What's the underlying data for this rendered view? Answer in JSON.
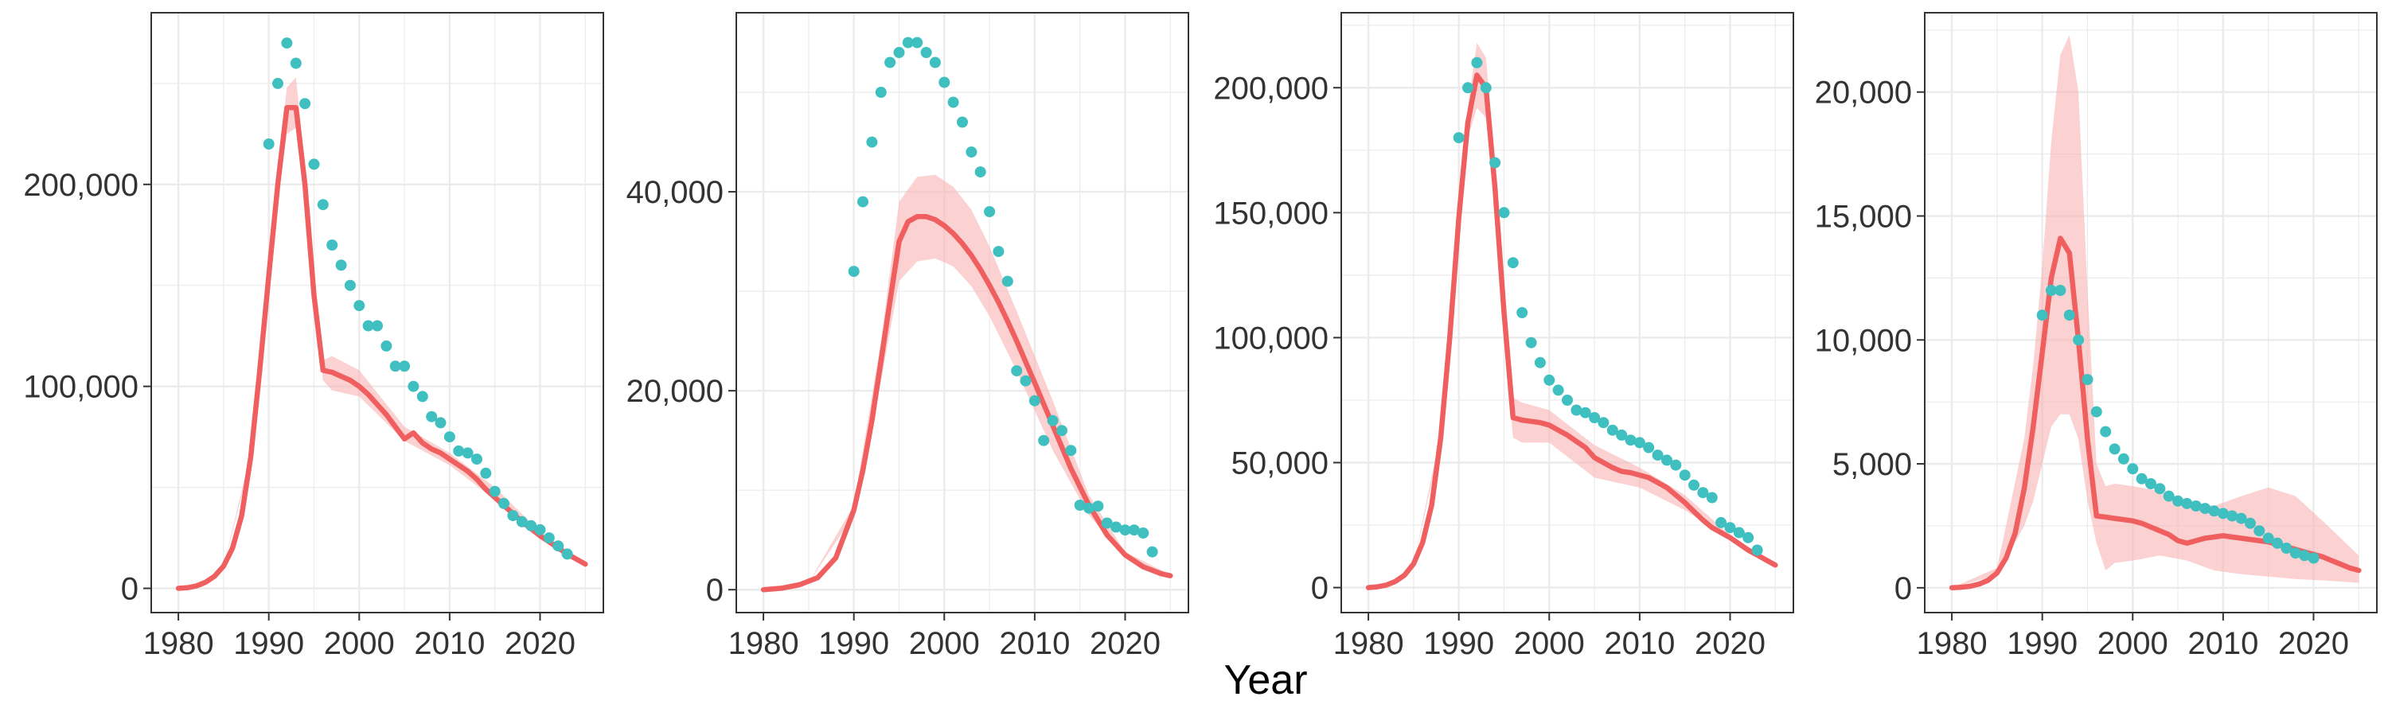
{
  "figure": {
    "x_axis_title": "Year",
    "colors": {
      "fit_line": "#EF5F5F",
      "ribbon": "#F8B4B4",
      "points": "#3FBFBF",
      "grid": "#EBEBEB",
      "panel_border": "#333333"
    }
  },
  "chart_data": [
    {
      "type": "line",
      "xlim": [
        1977,
        2027
      ],
      "ylim": [
        -12000,
        285000
      ],
      "x_ticks": [
        1980,
        1990,
        2000,
        2010,
        2020
      ],
      "x_tick_labels": [
        "1980",
        "1990",
        "2000",
        "2010",
        "2020"
      ],
      "y_ticks": [
        0,
        100000,
        200000
      ],
      "y_tick_labels": [
        "0",
        "100,000",
        "200,000"
      ],
      "grid": true,
      "fit": {
        "x": [
          1980,
          1981,
          1982,
          1983,
          1984,
          1985,
          1986,
          1987,
          1988,
          1989,
          1990,
          1991,
          1992,
          1993,
          1994,
          1995,
          1996,
          1997,
          1998,
          1999,
          2000,
          2001,
          2002,
          2003,
          2004,
          2005,
          2006,
          2007,
          2008,
          2009,
          2010,
          2011,
          2012,
          2013,
          2014,
          2015,
          2016,
          2017,
          2018,
          2019,
          2020,
          2021,
          2022,
          2023,
          2024,
          2025
        ],
        "y": [
          0,
          300,
          1200,
          3000,
          6000,
          11000,
          20000,
          36000,
          65000,
          108000,
          155000,
          200000,
          238000,
          238000,
          200000,
          145000,
          108000,
          107000,
          105000,
          103000,
          100000,
          96000,
          91000,
          86000,
          80000,
          74000,
          77000,
          72000,
          69000,
          67000,
          64000,
          61000,
          58000,
          54000,
          49000,
          45000,
          41000,
          37000,
          33000,
          29500,
          26000,
          23000,
          20000,
          17000,
          14500,
          12000
        ]
      },
      "band": {
        "x": [
          1980,
          1985,
          1988,
          1990,
          1991,
          1992,
          1993,
          1994,
          1995,
          1996,
          1997,
          2000,
          2005,
          2010,
          2015,
          2020,
          2025
        ],
        "lower": [
          0,
          11000,
          63000,
          150000,
          193000,
          225000,
          228000,
          195000,
          140000,
          103000,
          98000,
          95000,
          73000,
          61000,
          44000,
          25000,
          11500
        ],
        "upper": [
          0,
          11000,
          67000,
          160000,
          207000,
          248000,
          253000,
          210000,
          150000,
          113000,
          115000,
          108000,
          80000,
          67000,
          50000,
          28000,
          12500
        ]
      },
      "points": {
        "x": [
          1990,
          1991,
          1992,
          1993,
          1994,
          1995,
          1996,
          1997,
          1998,
          1999,
          2000,
          2001,
          2002,
          2003,
          2004,
          2005,
          2006,
          2007,
          2008,
          2009,
          2010,
          2011,
          2012,
          2013,
          2014,
          2015,
          2016,
          2017,
          2018,
          2019,
          2020,
          2021,
          2022,
          2023
        ],
        "y": [
          220000,
          250000,
          270000,
          260000,
          240000,
          210000,
          190000,
          170000,
          160000,
          150000,
          140000,
          130000,
          130000,
          120000,
          110000,
          110000,
          100000,
          95000,
          85000,
          82000,
          75000,
          68000,
          67000,
          64000,
          57000,
          48000,
          42000,
          36000,
          33000,
          31000,
          29000,
          25000,
          21000,
          17000
        ]
      }
    },
    {
      "type": "line",
      "xlim": [
        1977,
        2027
      ],
      "ylim": [
        -2300,
        58000
      ],
      "x_ticks": [
        1980,
        1990,
        2000,
        2010,
        2020
      ],
      "x_tick_labels": [
        "1980",
        "1990",
        "2000",
        "2010",
        "2020"
      ],
      "y_ticks": [
        0,
        20000,
        40000
      ],
      "y_tick_labels": [
        "0",
        "20,000",
        "40,000"
      ],
      "grid": true,
      "fit": {
        "x": [
          1980,
          1982,
          1984,
          1986,
          1988,
          1990,
          1991,
          1992,
          1993,
          1994,
          1995,
          1996,
          1997,
          1998,
          1999,
          2000,
          2001,
          2002,
          2003,
          2004,
          2005,
          2006,
          2007,
          2008,
          2010,
          2012,
          2014,
          2016,
          2018,
          2020,
          2022,
          2024,
          2025
        ],
        "y": [
          0,
          150,
          500,
          1200,
          3200,
          8000,
          12000,
          17000,
          23000,
          29000,
          35000,
          37000,
          37500,
          37500,
          37200,
          36600,
          35800,
          34800,
          33600,
          32200,
          30600,
          28900,
          27000,
          25000,
          20800,
          16500,
          12200,
          8500,
          5500,
          3500,
          2300,
          1600,
          1400
        ]
      },
      "band": {
        "x": [
          1980,
          1985,
          1990,
          1993,
          1995,
          1997,
          1999,
          2001,
          2003,
          2005,
          2008,
          2012,
          2016,
          2020,
          2025
        ],
        "lower": [
          0,
          700,
          7500,
          21000,
          31000,
          33000,
          33300,
          32500,
          30500,
          27500,
          22000,
          14000,
          7500,
          3200,
          1300
        ],
        "upper": [
          0,
          700,
          8500,
          25000,
          39000,
          41500,
          41700,
          40500,
          38200,
          34500,
          28000,
          19000,
          9500,
          3800,
          1500
        ]
      },
      "points": {
        "x": [
          1990,
          1991,
          1992,
          1993,
          1994,
          1995,
          1996,
          1997,
          1998,
          1999,
          2000,
          2001,
          2002,
          2003,
          2004,
          2005,
          2006,
          2007,
          2008,
          2009,
          2010,
          2011,
          2012,
          2013,
          2014,
          2015,
          2016,
          2017,
          2018,
          2019,
          2020,
          2021,
          2022,
          2023
        ],
        "y": [
          32000,
          39000,
          45000,
          50000,
          53000,
          54000,
          55000,
          55000,
          54000,
          53000,
          51000,
          49000,
          47000,
          44000,
          42000,
          38000,
          34000,
          31000,
          22000,
          21000,
          19000,
          15000,
          17000,
          16000,
          14000,
          8500,
          8200,
          8400,
          6700,
          6300,
          6000,
          6000,
          5700,
          3800
        ]
      }
    },
    {
      "type": "line",
      "xlim": [
        1977,
        2027
      ],
      "ylim": [
        -10000,
        230000
      ],
      "x_ticks": [
        1980,
        1990,
        2000,
        2010,
        2020
      ],
      "x_tick_labels": [
        "1980",
        "1990",
        "2000",
        "2010",
        "2020"
      ],
      "y_ticks": [
        0,
        50000,
        100000,
        150000,
        200000
      ],
      "y_tick_labels": [
        "0",
        "50,000",
        "100,000",
        "150,000",
        "200,000"
      ],
      "grid": true,
      "fit": {
        "x": [
          1980,
          1981,
          1982,
          1983,
          1984,
          1985,
          1986,
          1987,
          1988,
          1989,
          1990,
          1991,
          1992,
          1993,
          1994,
          1995,
          1996,
          1997,
          1998,
          1999,
          2000,
          2001,
          2002,
          2003,
          2004,
          2005,
          2006,
          2007,
          2008,
          2009,
          2010,
          2011,
          2012,
          2013,
          2014,
          2015,
          2016,
          2017,
          2018,
          2019,
          2020,
          2021,
          2022,
          2023,
          2024,
          2025
        ],
        "y": [
          0,
          300,
          1000,
          2500,
          5000,
          9500,
          18000,
          33000,
          60000,
          100000,
          148000,
          186000,
          205000,
          200000,
          160000,
          110000,
          68000,
          67000,
          66500,
          66000,
          65000,
          63000,
          61000,
          58500,
          56000,
          52000,
          50000,
          48000,
          46500,
          46000,
          45000,
          44000,
          42000,
          40000,
          37000,
          34000,
          30500,
          27000,
          24000,
          22000,
          20000,
          17500,
          15000,
          13000,
          11000,
          9000
        ]
      },
      "band": {
        "x": [
          1980,
          1985,
          1988,
          1990,
          1991,
          1992,
          1993,
          1994,
          1995,
          1996,
          1997,
          2000,
          2005,
          2010,
          2015,
          2020,
          2025
        ],
        "lower": [
          0,
          9500,
          58000,
          143000,
          180000,
          192000,
          188000,
          152000,
          100000,
          60000,
          58000,
          58000,
          44000,
          40000,
          31000,
          19000,
          8500
        ],
        "upper": [
          0,
          9500,
          62000,
          153000,
          192000,
          218000,
          212000,
          168000,
          120000,
          76000,
          74000,
          71000,
          57000,
          48000,
          37000,
          21000,
          9500
        ]
      },
      "points": {
        "x": [
          1990,
          1991,
          1992,
          1993,
          1994,
          1995,
          1996,
          1997,
          1998,
          1999,
          2000,
          2001,
          2002,
          2003,
          2004,
          2005,
          2006,
          2007,
          2008,
          2009,
          2010,
          2011,
          2012,
          2013,
          2014,
          2015,
          2016,
          2017,
          2018,
          2019,
          2020,
          2021,
          2022,
          2023
        ],
        "y": [
          180000,
          200000,
          210000,
          200000,
          170000,
          150000,
          130000,
          110000,
          98000,
          90000,
          83000,
          79000,
          75000,
          71000,
          70000,
          68000,
          66000,
          63000,
          61000,
          59000,
          58000,
          56000,
          53000,
          51000,
          49000,
          45000,
          41000,
          38000,
          36000,
          26000,
          24000,
          22000,
          20000,
          15000
        ]
      }
    },
    {
      "type": "line",
      "xlim": [
        1977,
        2027
      ],
      "ylim": [
        -1000,
        23200
      ],
      "x_ticks": [
        1980,
        1990,
        2000,
        2010,
        2020
      ],
      "x_tick_labels": [
        "1980",
        "1990",
        "2000",
        "2010",
        "2020"
      ],
      "y_ticks": [
        0,
        5000,
        10000,
        15000,
        20000
      ],
      "y_tick_labels": [
        "0",
        "5,000",
        "10,000",
        "15,000",
        "20,000"
      ],
      "grid": true,
      "fit": {
        "x": [
          1980,
          1981,
          1982,
          1983,
          1984,
          1985,
          1986,
          1987,
          1988,
          1989,
          1990,
          1991,
          1992,
          1993,
          1994,
          1995,
          1996,
          1997,
          1998,
          1999,
          2000,
          2001,
          2002,
          2003,
          2004,
          2005,
          2006,
          2007,
          2008,
          2009,
          2010,
          2011,
          2012,
          2013,
          2014,
          2015,
          2016,
          2017,
          2018,
          2019,
          2020,
          2021,
          2022,
          2023,
          2024,
          2025
        ],
        "y": [
          0,
          20,
          60,
          150,
          300,
          600,
          1200,
          2200,
          4000,
          6500,
          9500,
          12500,
          14100,
          13500,
          10000,
          6000,
          2900,
          2850,
          2800,
          2750,
          2700,
          2600,
          2450,
          2300,
          2150,
          1900,
          1800,
          1900,
          2000,
          2050,
          2100,
          2050,
          2000,
          1950,
          1900,
          1850,
          1750,
          1650,
          1550,
          1450,
          1350,
          1250,
          1100,
          950,
          800,
          700
        ]
      },
      "band": {
        "x": [
          1980,
          1985,
          1988,
          1989,
          1990,
          1991,
          1992,
          1993,
          1994,
          1995,
          1996,
          1997,
          1998,
          2000,
          2003,
          2006,
          2009,
          2012,
          2015,
          2018,
          2021,
          2025
        ],
        "lower": [
          0,
          500,
          2500,
          3500,
          5000,
          6500,
          7000,
          7000,
          6000,
          3500,
          1800,
          700,
          1000,
          1100,
          1300,
          1100,
          700,
          550,
          450,
          350,
          300,
          200
        ],
        "upper": [
          0,
          800,
          6000,
          9000,
          13000,
          18000,
          21500,
          22300,
          20000,
          12000,
          5000,
          4100,
          4200,
          4100,
          3900,
          3500,
          3300,
          3700,
          4050,
          3700,
          2700,
          1300
        ]
      },
      "points": {
        "x": [
          1990,
          1991,
          1992,
          1993,
          1994,
          1995,
          1996,
          1997,
          1998,
          1999,
          2000,
          2001,
          2002,
          2003,
          2004,
          2005,
          2006,
          2007,
          2008,
          2009,
          2010,
          2011,
          2012,
          2013,
          2014,
          2015,
          2016,
          2017,
          2018,
          2019,
          2020
        ],
        "y": [
          11000,
          12000,
          12000,
          11000,
          10000,
          8400,
          7100,
          6300,
          5600,
          5200,
          4800,
          4400,
          4200,
          4000,
          3700,
          3500,
          3400,
          3300,
          3200,
          3100,
          3000,
          2900,
          2800,
          2600,
          2300,
          2000,
          1800,
          1600,
          1400,
          1300,
          1200
        ]
      }
    }
  ]
}
